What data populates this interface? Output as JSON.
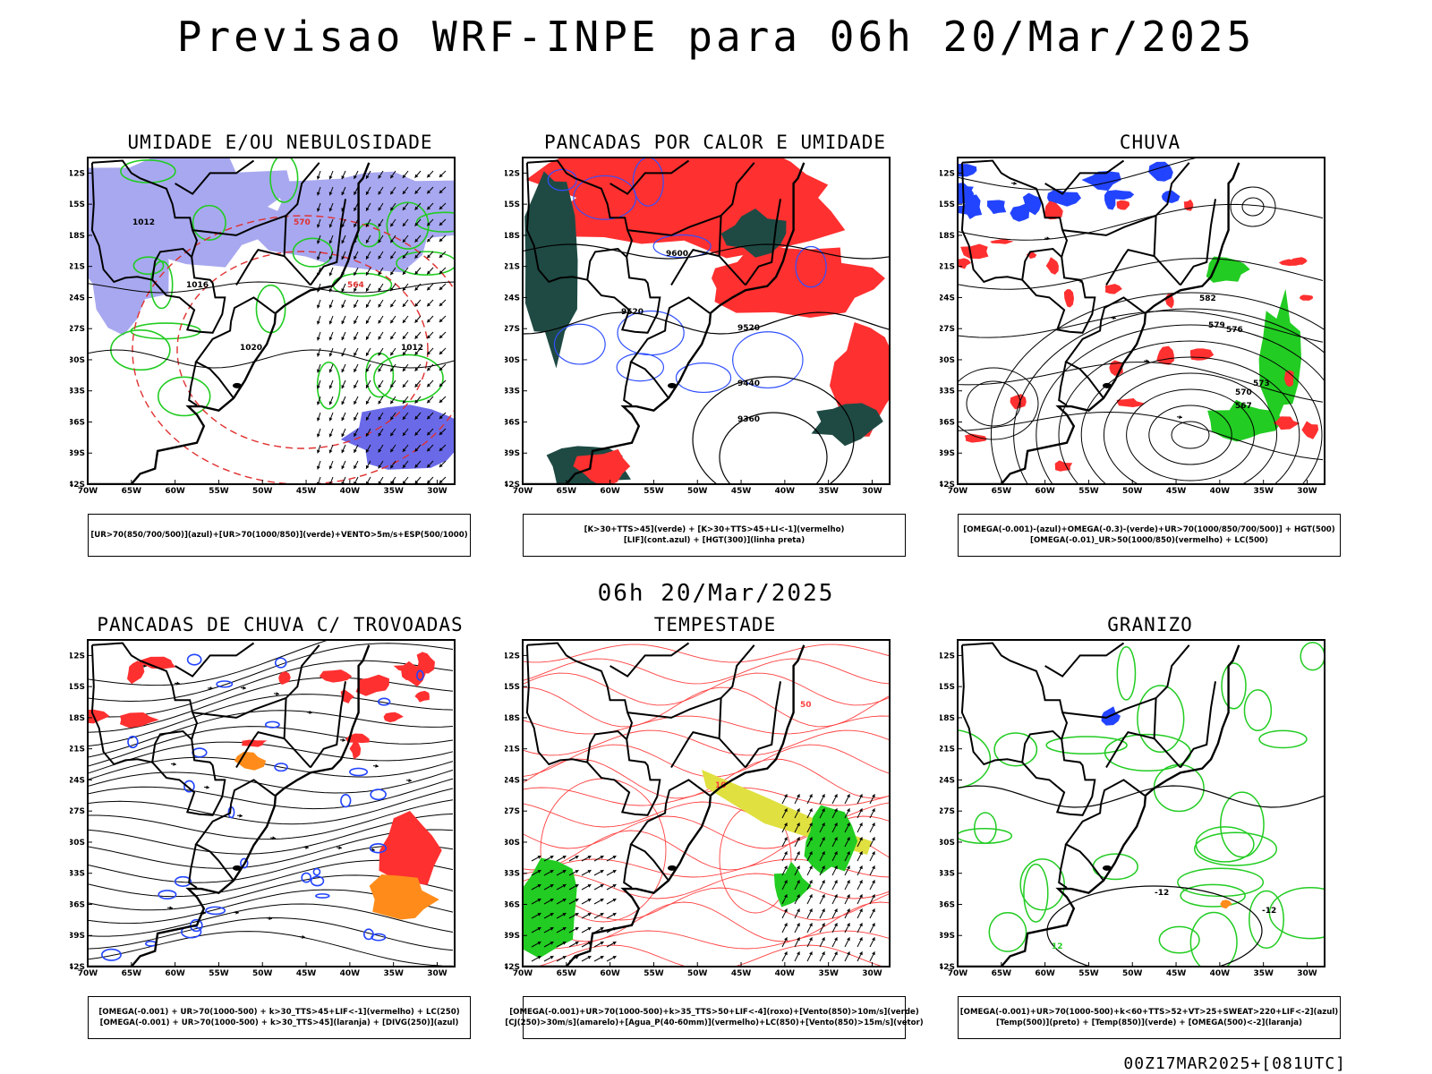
{
  "header": {
    "title": "Previsao WRF-INPE  para 06h 20/Mar/2025"
  },
  "middle": {
    "title": "06h 20/Mar/2025"
  },
  "footer": {
    "run_info": "00Z17MAR2025+[081UTC]"
  },
  "axes": {
    "lat_labels": [
      "12S",
      "15S",
      "18S",
      "21S",
      "24S",
      "27S",
      "30S",
      "33S",
      "36S",
      "39S",
      "42S"
    ],
    "lon_labels": [
      "70W",
      "65W",
      "60W",
      "55W",
      "50W",
      "45W",
      "40W",
      "35W",
      "30W"
    ]
  },
  "panels": [
    {
      "title": "UMIDADE E/OU NEBULOSIDADE",
      "legend": [
        "[UR>70(850/700/500)](azul)+[UR>70(1000/850)](verde)+VENTO>5m/s+ESP(500/1000)"
      ],
      "contour_labels": [
        "1012",
        "1016",
        "1020",
        "570",
        "564",
        "1012"
      ]
    },
    {
      "title": "PANCADAS POR CALOR E UMIDADE",
      "legend": [
        "[K>30+TTS>45](verde) + [K>30+TTS>45+LI<-1](vermelho)",
        "[LIF](cont.azul) + [HGT(300)](linha preta)"
      ],
      "contour_labels": [
        "9600",
        "9520",
        "9440",
        "9360",
        "9520"
      ]
    },
    {
      "title": "CHUVA",
      "legend": [
        "[OMEGA(-0.001)-(azul)+OMEGA(-0.3)-(verde)+UR>70(1000/850/700/500)] + HGT(500)",
        "[OMEGA(-0.01)_UR>50(1000/850)(vermelho) + LC(500)"
      ],
      "contour_labels": [
        "576",
        "573",
        "570",
        "567",
        "579",
        "582"
      ]
    },
    {
      "title": "PANCADAS DE CHUVA C/ TROVOADAS",
      "legend": [
        "[OMEGA(-0.001) + UR>70(1000-500) + k>30_TTS>45+LIF<-1](vermelho) + LC(250)",
        "[OMEGA(-0.001) + UR>70(1000-500) + k>30_TTS>45](laranja) + [DIVG(250)](azul)"
      ],
      "contour_labels": []
    },
    {
      "title": "TEMPESTADE",
      "legend": [
        "[OMEGA(-0.001)+UR>70(1000-500)+k>35_TTS>50+LIF<-4](roxo)+[Vento(850)>10m/s](verde)",
        "[CJ(250)>30m/s](amarelo)+[Agua_P(40-60mm)](vermelho)+LC(850)+[Vento(850)>15m/s](vetor)"
      ],
      "contour_labels": [
        "10",
        "50"
      ]
    },
    {
      "title": "GRANIZO",
      "legend": [
        "[OMEGA(-0.001)+UR>70(1000-500)+k<60+TTS>52+VT>25+SWEAT>220+LIF<-2](azul)",
        "[Temp(500)](preto) + [Temp(850)](verde) + [OMEGA(500)<-2](laranja)"
      ],
      "contour_labels": [
        "-12",
        "12",
        "-12"
      ]
    }
  ],
  "colors": {
    "humidity_blue": "#a8a8f0",
    "rain_red": "#ff3030",
    "storm_green": "#22cc22",
    "dark_teal": "#1f4a44",
    "jet_yellow": "#e0e040",
    "orange": "#ff8c1a"
  }
}
